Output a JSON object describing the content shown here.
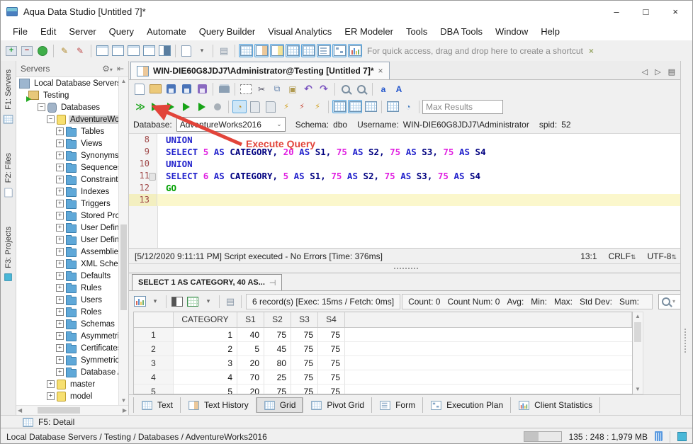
{
  "titlebar": {
    "title": "Aqua Data Studio [Untitled 7]*",
    "minimize": "–",
    "maximize": "□",
    "close": "×"
  },
  "menubar": [
    "File",
    "Edit",
    "Server",
    "Query",
    "Automate",
    "Query Builder",
    "Visual Analytics",
    "ER Modeler",
    "Tools",
    "DBA Tools",
    "Window",
    "Help"
  ],
  "main_toolbar": {
    "quick_access_text": "For quick access, drag and drop here to create a shortcut",
    "quick_access_close": "×",
    "groups": [
      [
        {
          "n": "register-server-icon",
          "k": "srvadd"
        },
        {
          "n": "unregister-server-icon",
          "k": "srvdel"
        },
        {
          "n": "schema-browser-icon",
          "k": "globe"
        }
      ],
      [
        {
          "n": "query-analyzer-icon",
          "k": "pen"
        },
        {
          "n": "admin-query-icon",
          "k": "penred"
        }
      ],
      [
        {
          "n": "find-window-icon",
          "k": "winf"
        },
        {
          "n": "find-results-window-icon",
          "k": "winf"
        },
        {
          "n": "find-history-window-icon",
          "k": "winf"
        },
        {
          "n": "detach-window-icon",
          "k": "winf"
        },
        {
          "n": "windows-manager-icon",
          "k": "win-dark"
        }
      ],
      [
        {
          "n": "new-document-icon",
          "k": "doc"
        },
        {
          "n": "new-document-caret-icon",
          "k": "caret"
        }
      ],
      [
        {
          "n": "script-options-icon",
          "k": "scroll"
        }
      ],
      [
        {
          "n": "show-text-icon",
          "k": "grid",
          "active": true
        },
        {
          "n": "show-text-history-icon",
          "k": "win-orange",
          "active": true
        },
        {
          "n": "show-grid-icon",
          "k": "win-yellow",
          "active": true
        },
        {
          "n": "show-table-icon",
          "k": "grid",
          "active": true
        },
        {
          "n": "show-pivot-grid-icon",
          "k": "grid",
          "active": true
        },
        {
          "n": "show-form-icon",
          "k": "list",
          "active": true
        },
        {
          "n": "show-execution-plan-icon",
          "k": "plan",
          "active": true
        },
        {
          "n": "show-client-statistics-icon",
          "k": "chart",
          "active": true
        }
      ]
    ]
  },
  "sidebar": {
    "tabs": [
      {
        "label": "F1: Servers",
        "icon": "grid"
      },
      {
        "label": "F2: Files",
        "icon": "doc"
      },
      {
        "label": "F3: Projects",
        "icon": "cube"
      }
    ],
    "panel_title": "Servers",
    "tree": [
      {
        "label": "Local Database Servers",
        "depth": 0,
        "icon": "root",
        "expand": ""
      },
      {
        "label": "Testing",
        "depth": 1,
        "icon": "srv",
        "expand": ""
      },
      {
        "label": "Databases",
        "depth": 2,
        "icon": "db",
        "expand": "-"
      },
      {
        "label": "AdventureWork",
        "depth": 3,
        "icon": "ydb",
        "expand": "-",
        "selected": true
      },
      {
        "label": "Tables",
        "depth": 4,
        "icon": "folder",
        "expand": "+"
      },
      {
        "label": "Views",
        "depth": 4,
        "icon": "folder",
        "expand": "+"
      },
      {
        "label": "Synonyms",
        "depth": 4,
        "icon": "folder",
        "expand": "+"
      },
      {
        "label": "Sequences",
        "depth": 4,
        "icon": "folder",
        "expand": "+"
      },
      {
        "label": "Constraints",
        "depth": 4,
        "icon": "folder",
        "expand": "+"
      },
      {
        "label": "Indexes",
        "depth": 4,
        "icon": "folder",
        "expand": "+"
      },
      {
        "label": "Triggers",
        "depth": 4,
        "icon": "folder",
        "expand": "+"
      },
      {
        "label": "Stored Proc",
        "depth": 4,
        "icon": "folder",
        "expand": "+"
      },
      {
        "label": "User Define",
        "depth": 4,
        "icon": "folder",
        "expand": "+"
      },
      {
        "label": "User Define",
        "depth": 4,
        "icon": "folder",
        "expand": "+"
      },
      {
        "label": "Assemblies",
        "depth": 4,
        "icon": "folder",
        "expand": "+"
      },
      {
        "label": "XML Schema",
        "depth": 4,
        "icon": "folder",
        "expand": "+"
      },
      {
        "label": "Defaults",
        "depth": 4,
        "icon": "folder",
        "expand": "+"
      },
      {
        "label": "Rules",
        "depth": 4,
        "icon": "folder",
        "expand": "+"
      },
      {
        "label": "Users",
        "depth": 4,
        "icon": "folder",
        "expand": "+"
      },
      {
        "label": "Roles",
        "depth": 4,
        "icon": "folder",
        "expand": "+"
      },
      {
        "label": "Schemas",
        "depth": 4,
        "icon": "folder",
        "expand": "+"
      },
      {
        "label": "Asymmetric",
        "depth": 4,
        "icon": "folder",
        "expand": "+"
      },
      {
        "label": "Certificates",
        "depth": 4,
        "icon": "folder",
        "expand": "+"
      },
      {
        "label": "Symmetric K",
        "depth": 4,
        "icon": "folder",
        "expand": "+"
      },
      {
        "label": "Database A",
        "depth": 4,
        "icon": "folder",
        "expand": "+"
      },
      {
        "label": "master",
        "depth": 3,
        "icon": "ydb",
        "expand": "+"
      },
      {
        "label": "model",
        "depth": 3,
        "icon": "ydb",
        "expand": "+"
      }
    ]
  },
  "doc_tab": {
    "title": "WIN-DIE60G8JDJ7\\Administrator@Testing [Untitled 7]*",
    "close": "×",
    "nav_prev": "◁",
    "nav_next": "▷",
    "nav_list": "▤"
  },
  "query_toolbar1": {
    "groups": [
      [
        {
          "n": "new-file-icon",
          "k": "doc"
        },
        {
          "n": "open-file-icon",
          "k": "folder-open"
        },
        {
          "n": "save-icon",
          "k": "save"
        },
        {
          "n": "save-as-icon",
          "k": "save"
        },
        {
          "n": "save-all-icon",
          "k": "saveall"
        }
      ],
      [
        {
          "n": "print-icon",
          "k": "print"
        }
      ],
      [
        {
          "n": "select-block-icon",
          "k": "marquee"
        },
        {
          "n": "cut-icon",
          "k": "cut"
        },
        {
          "n": "copy-icon",
          "k": "copy"
        },
        {
          "n": "paste-icon",
          "k": "paste"
        },
        {
          "n": "undo-icon",
          "k": "undo"
        },
        {
          "n": "redo-icon",
          "k": "redo"
        }
      ],
      [
        {
          "n": "find-icon",
          "k": "mag"
        },
        {
          "n": "find-replace-icon",
          "k": "mag"
        }
      ],
      [
        {
          "n": "lowercase-icon",
          "k": "lower"
        },
        {
          "n": "uppercase-icon",
          "k": "upper"
        }
      ]
    ]
  },
  "query_toolbar2": {
    "max_results_placeholder": "Max Results",
    "groups": [
      [
        {
          "n": "execute-all-icon",
          "k": "exeall"
        },
        {
          "n": "execute-query-icon",
          "k": "play"
        },
        {
          "n": "execute-script-icon",
          "k": "play"
        },
        {
          "n": "execute-edit-icon",
          "k": "play"
        },
        {
          "n": "execute-export-icon",
          "k": "play"
        },
        {
          "n": "cancel-query-icon",
          "k": "stop"
        }
      ],
      [
        {
          "n": "auto-commit-icon",
          "k": "autocommit",
          "active": true
        },
        {
          "n": "commit-icon",
          "k": "docgray"
        },
        {
          "n": "rollback-icon",
          "k": "docgray"
        },
        {
          "n": "connect-icon",
          "k": "bolt"
        },
        {
          "n": "disconnect-icon",
          "k": "boltred"
        },
        {
          "n": "reconnect-icon",
          "k": "boltyellow"
        }
      ],
      [
        {
          "n": "grid-results-mode-icon",
          "k": "grid",
          "active": true
        },
        {
          "n": "split-results-mode-icon",
          "k": "grid",
          "active": true
        },
        {
          "n": "export-results-mode-icon",
          "k": "grid"
        }
      ],
      [
        {
          "n": "query-history-icon",
          "k": "histgrid"
        },
        {
          "n": "query-scheduler-icon",
          "k": "sched"
        }
      ]
    ]
  },
  "query_context": {
    "database_label": "Database:",
    "database_value": "AdventureWorks2016",
    "schema_label": "Schema:",
    "schema_value": "dbo",
    "username_label": "Username:",
    "username_value": "WIN-DIE60G8JDJ7\\Administrator",
    "spid_label": "spid:",
    "spid_value": "52"
  },
  "annotation": {
    "text": "Execute Query",
    "color": "#e2443a"
  },
  "editor": {
    "lines": [
      {
        "num": "8",
        "tokens": [
          {
            "t": "UNION",
            "c": "kw"
          }
        ]
      },
      {
        "num": "9",
        "tokens": [
          {
            "t": "SELECT ",
            "c": "kw"
          },
          {
            "t": "5 ",
            "c": "n"
          },
          {
            "t": "AS ",
            "c": "kw"
          },
          {
            "t": "CATEGORY, ",
            "c": "id"
          },
          {
            "t": "20 ",
            "c": "n"
          },
          {
            "t": "AS ",
            "c": "kw"
          },
          {
            "t": "S1, ",
            "c": "id"
          },
          {
            "t": "75 ",
            "c": "n"
          },
          {
            "t": "AS ",
            "c": "kw"
          },
          {
            "t": "S2, ",
            "c": "id"
          },
          {
            "t": "75 ",
            "c": "n"
          },
          {
            "t": "AS ",
            "c": "kw"
          },
          {
            "t": "S3, ",
            "c": "id"
          },
          {
            "t": "75 ",
            "c": "n"
          },
          {
            "t": "AS ",
            "c": "kw"
          },
          {
            "t": "S4",
            "c": "id"
          }
        ]
      },
      {
        "num": "10",
        "tokens": [
          {
            "t": "UNION",
            "c": "kw"
          }
        ]
      },
      {
        "num": "11",
        "bookmark": true,
        "tokens": [
          {
            "t": "SELECT ",
            "c": "kw"
          },
          {
            "t": "6 ",
            "c": "n"
          },
          {
            "t": "AS ",
            "c": "kw"
          },
          {
            "t": "CATEGORY, ",
            "c": "id"
          },
          {
            "t": "5 ",
            "c": "n"
          },
          {
            "t": "AS ",
            "c": "kw"
          },
          {
            "t": "S1, ",
            "c": "id"
          },
          {
            "t": "75 ",
            "c": "n"
          },
          {
            "t": "AS ",
            "c": "kw"
          },
          {
            "t": "S2, ",
            "c": "id"
          },
          {
            "t": "75 ",
            "c": "n"
          },
          {
            "t": "AS ",
            "c": "kw"
          },
          {
            "t": "S3, ",
            "c": "id"
          },
          {
            "t": "75 ",
            "c": "n"
          },
          {
            "t": "AS ",
            "c": "kw"
          },
          {
            "t": "S4",
            "c": "id"
          }
        ]
      },
      {
        "num": "12",
        "tokens": [
          {
            "t": "GO",
            "c": "go"
          }
        ]
      },
      {
        "num": "13",
        "current": true,
        "tokens": []
      }
    ],
    "status_left": "[5/12/2020 9:11:11 PM] Script executed - No Errors [Time: 376ms]",
    "cursor_pos": "13:1",
    "line_ending": "CRLF",
    "encoding": "UTF-8"
  },
  "results": {
    "tab_title": "SELECT 1 AS CATEGORY, 40 AS...",
    "toolbar_icons": [
      [
        {
          "n": "chart-results-icon",
          "k": "chart"
        },
        {
          "n": "chart-caret-icon",
          "k": "caret"
        }
      ],
      [
        {
          "n": "format-results-icon",
          "k": "fmt"
        },
        {
          "n": "export-excel-icon",
          "k": "excel"
        },
        {
          "n": "excel-caret-icon",
          "k": "caret"
        }
      ],
      [
        {
          "n": "script-results-icon",
          "k": "scriptres"
        }
      ]
    ],
    "record_info": "6 record(s) [Exec: 15ms / Fetch: 0ms]",
    "stats": [
      "Count: 0",
      "Count Num: 0",
      "Avg:",
      "Min:",
      "Max:",
      "Std Dev:",
      "Sum:"
    ],
    "grid": {
      "columns": [
        "CATEGORY",
        "S1",
        "S2",
        "S3",
        "S4"
      ],
      "rows": [
        {
          "rn": "1",
          "cells": [
            "1",
            "40",
            "75",
            "75",
            "75"
          ]
        },
        {
          "rn": "2",
          "cells": [
            "2",
            "5",
            "45",
            "75",
            "75"
          ]
        },
        {
          "rn": "3",
          "cells": [
            "3",
            "20",
            "80",
            "75",
            "75"
          ]
        },
        {
          "rn": "4",
          "cells": [
            "4",
            "70",
            "25",
            "75",
            "75"
          ]
        },
        {
          "rn": "5",
          "cells": [
            "5",
            "20",
            "75",
            "75",
            "75"
          ]
        }
      ]
    },
    "bottom_tabs": [
      {
        "label": "Text",
        "icon": "grid"
      },
      {
        "label": "Text History",
        "icon": "win-orange"
      },
      {
        "label": "Grid",
        "icon": "grid",
        "active": true
      },
      {
        "label": "Pivot Grid",
        "icon": "grid"
      },
      {
        "label": "Form",
        "icon": "list"
      },
      {
        "label": "Execution Plan",
        "icon": "plan"
      },
      {
        "label": "Client Statistics",
        "icon": "chart"
      }
    ]
  },
  "detail_bar": {
    "label": "F5: Detail"
  },
  "statusbar": {
    "path": "Local Database Servers / Testing / Databases / AdventureWorks2016",
    "memory": "135 : 248 : 1,979 MB"
  }
}
